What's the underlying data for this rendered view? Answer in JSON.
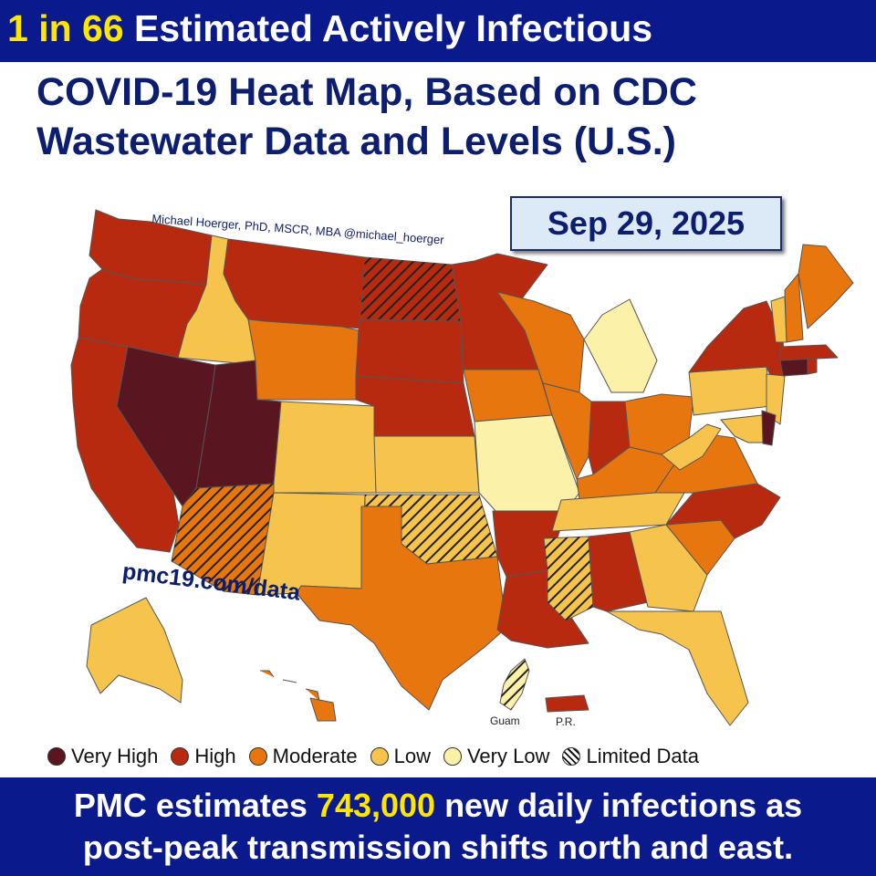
{
  "header": {
    "lead": "1 in 66",
    "rest": " Estimated Actively Infectious"
  },
  "title": {
    "line1": "COVID-19 Heat Map, Based on CDC",
    "line2": "Wastewater Data and Levels (U.S.)"
  },
  "date": "Sep 29, 2025",
  "credit": "Michael Hoerger, PhD, MSCR, MBA  @michael_hoerger",
  "url": "pmc19.com/data",
  "colors": {
    "very_high": "#5a1620",
    "high": "#b82a10",
    "moderate": "#e8760f",
    "low": "#f6c34c",
    "very_low": "#fbf1a8",
    "limited": "hatched",
    "banner": "#0a1a8c",
    "highlight": "#ffe600"
  },
  "legend": [
    {
      "label": "Very High",
      "level": "very_high"
    },
    {
      "label": "High",
      "level": "high"
    },
    {
      "label": "Moderate",
      "level": "moderate"
    },
    {
      "label": "Low",
      "level": "low"
    },
    {
      "label": "Very Low",
      "level": "very_low"
    },
    {
      "label": "Limited Data",
      "level": "limited"
    }
  ],
  "map": {
    "territory_labels": {
      "guam": "Guam",
      "pr": "P.R."
    },
    "regions": [
      {
        "name": "WA",
        "level": "high"
      },
      {
        "name": "OR",
        "level": "high"
      },
      {
        "name": "CA",
        "level": "high"
      },
      {
        "name": "ID",
        "level": "low"
      },
      {
        "name": "NV",
        "level": "very_high"
      },
      {
        "name": "UT",
        "level": "very_high"
      },
      {
        "name": "AZ",
        "level": "moderate",
        "limited_data": true
      },
      {
        "name": "MT",
        "level": "high"
      },
      {
        "name": "WY",
        "level": "moderate"
      },
      {
        "name": "CO",
        "level": "low"
      },
      {
        "name": "NM",
        "level": "low"
      },
      {
        "name": "ND",
        "level": "high",
        "limited_data": true
      },
      {
        "name": "SD",
        "level": "high"
      },
      {
        "name": "NE",
        "level": "high"
      },
      {
        "name": "KS",
        "level": "low"
      },
      {
        "name": "OK",
        "level": "low",
        "limited_data": true
      },
      {
        "name": "TX",
        "level": "moderate"
      },
      {
        "name": "MN",
        "level": "high"
      },
      {
        "name": "IA",
        "level": "moderate"
      },
      {
        "name": "MO",
        "level": "very_low"
      },
      {
        "name": "AR",
        "level": "high"
      },
      {
        "name": "LA",
        "level": "high"
      },
      {
        "name": "WI",
        "level": "moderate"
      },
      {
        "name": "IL",
        "level": "moderate"
      },
      {
        "name": "MI",
        "level": "very_low"
      },
      {
        "name": "IN",
        "level": "high"
      },
      {
        "name": "OH",
        "level": "moderate"
      },
      {
        "name": "KY",
        "level": "moderate"
      },
      {
        "name": "TN",
        "level": "low"
      },
      {
        "name": "MS",
        "level": "low",
        "limited_data": true
      },
      {
        "name": "AL",
        "level": "high"
      },
      {
        "name": "GA",
        "level": "low"
      },
      {
        "name": "FL",
        "level": "low"
      },
      {
        "name": "SC",
        "level": "moderate"
      },
      {
        "name": "NC",
        "level": "high"
      },
      {
        "name": "VA",
        "level": "moderate"
      },
      {
        "name": "WV",
        "level": "low"
      },
      {
        "name": "PA",
        "level": "low"
      },
      {
        "name": "NY",
        "level": "high"
      },
      {
        "name": "NJ",
        "level": "low"
      },
      {
        "name": "MD",
        "level": "low"
      },
      {
        "name": "DE",
        "level": "very_high"
      },
      {
        "name": "CT",
        "level": "very_high"
      },
      {
        "name": "RI",
        "level": "high"
      },
      {
        "name": "MA",
        "level": "high"
      },
      {
        "name": "VT",
        "level": "low"
      },
      {
        "name": "NH",
        "level": "moderate"
      },
      {
        "name": "ME",
        "level": "moderate"
      },
      {
        "name": "AK",
        "level": "low"
      },
      {
        "name": "HI",
        "level": "moderate"
      },
      {
        "name": "Guam",
        "level": "very_low",
        "limited_data": true
      },
      {
        "name": "PR",
        "level": "high"
      }
    ]
  },
  "footer": {
    "pre": "PMC estimates ",
    "number": "743,000",
    "post": " new daily infections as",
    "line2": "post-peak transmission shifts north and east."
  }
}
